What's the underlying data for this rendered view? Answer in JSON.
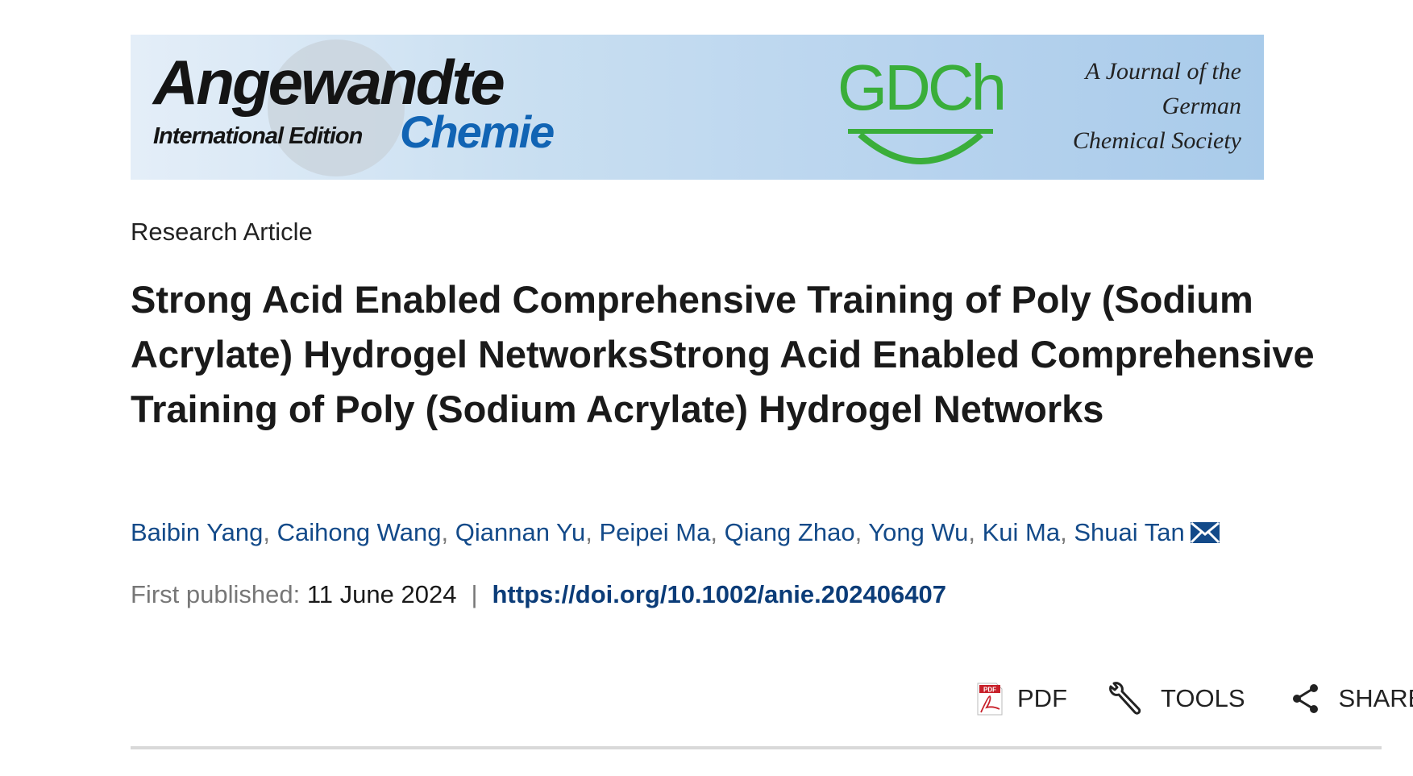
{
  "banner": {
    "logo_main": "Angewandte",
    "logo_edition": "International Edition",
    "logo_sub": "Chemie",
    "society_logo": "GDCh",
    "tagline_lines": [
      "A Journal of the",
      "German",
      "Chemical Society"
    ]
  },
  "article": {
    "type": "Research Article",
    "title": "Strong Acid Enabled Comprehensive Training of Poly (Sodium Acrylate) Hydrogel NetworksStrong Acid Enabled Comprehensive Training of Poly (Sodium Acrylate) Hydrogel Networks",
    "authors": [
      "Baibin Yang",
      "Caihong Wang",
      "Qiannan Yu",
      "Peipei Ma",
      "Qiang Zhao",
      "Yong Wu",
      "Kui Ma",
      "Shuai Tan"
    ],
    "author_separator": ",",
    "corresponding_icon": "envelope-icon",
    "published_label": "First published:",
    "published_date": "11 June 2024",
    "divider": "|",
    "doi": "https://doi.org/10.1002/anie.202406407"
  },
  "toolbar": {
    "pdf": {
      "label": "PDF",
      "icon": "pdf-icon"
    },
    "tools": {
      "label": "TOOLS",
      "icon": "wrench-icon"
    },
    "share": {
      "label": "SHARE",
      "icon": "share-icon"
    }
  },
  "colors": {
    "author_link": "#134a89",
    "doi_link": "#0b3c78",
    "gdch_green": "#3aae3a",
    "chemie_blue": "#1164b4"
  }
}
